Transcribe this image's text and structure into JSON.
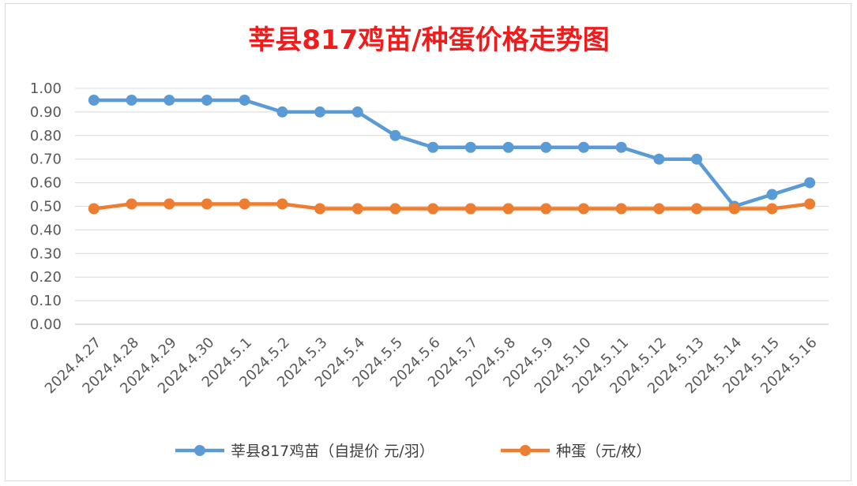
{
  "chart_data": {
    "type": "line",
    "title": "莘县817鸡苗/种蛋价格走势图",
    "categories": [
      "2024.4.27",
      "2024.4.28",
      "2024.4.29",
      "2024.4.30",
      "2024.5.1",
      "2024.5.2",
      "2024.5.3",
      "2024.5.4",
      "2024.5.5",
      "2024.5.6",
      "2024.5.7",
      "2024.5.8",
      "2024.5.9",
      "2024.5.10",
      "2024.5.11",
      "2024.5.12",
      "2024.5.13",
      "2024.5.14",
      "2024.5.15",
      "2024.5.16"
    ],
    "series": [
      {
        "name": "莘县817鸡苗（自提价 元/羽）",
        "color": "#5b9bd5",
        "values": [
          0.95,
          0.95,
          0.95,
          0.95,
          0.95,
          0.9,
          0.9,
          0.9,
          0.8,
          0.75,
          0.75,
          0.75,
          0.75,
          0.75,
          0.75,
          0.7,
          0.7,
          0.5,
          0.55,
          0.6
        ]
      },
      {
        "name": "种蛋（元/枚）",
        "color": "#ed7d31",
        "values": [
          0.49,
          0.51,
          0.51,
          0.51,
          0.51,
          0.51,
          0.49,
          0.49,
          0.49,
          0.49,
          0.49,
          0.49,
          0.49,
          0.49,
          0.49,
          0.49,
          0.49,
          0.49,
          0.49,
          0.51
        ]
      }
    ],
    "yticks": [
      "0.00",
      "0.10",
      "0.20",
      "0.30",
      "0.40",
      "0.50",
      "0.60",
      "0.70",
      "0.80",
      "0.90",
      "1.00"
    ],
    "ylim": [
      0,
      1.0
    ],
    "grid": true,
    "legend": "bottom",
    "xlabel": "",
    "ylabel": ""
  }
}
